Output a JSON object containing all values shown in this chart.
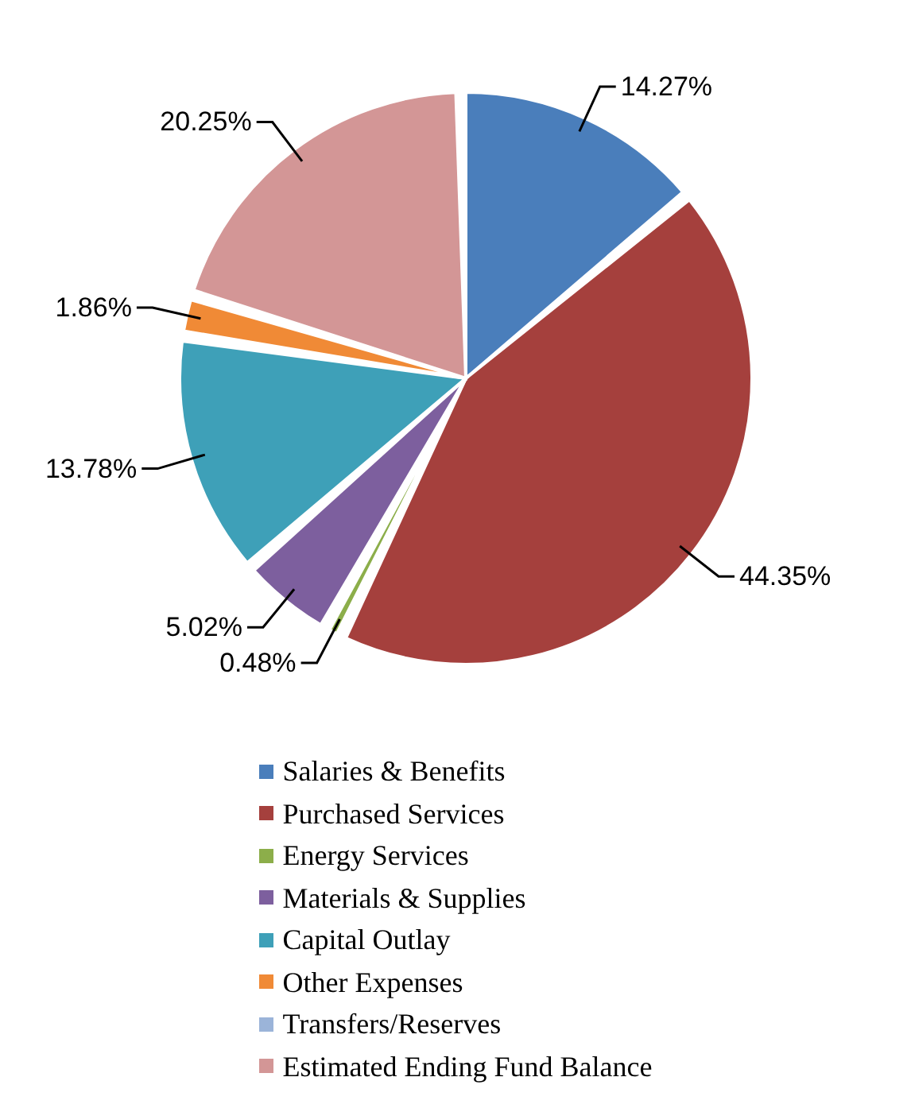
{
  "chart_data": {
    "type": "pie",
    "categories": [
      "Salaries & Benefits",
      "Purchased Services",
      "Energy Services",
      "Materials & Supplies",
      "Capital Outlay",
      "Other Expenses",
      "Transfers/Reserves",
      "Estimated Ending Fund Balance"
    ],
    "values": [
      14.27,
      44.35,
      0.48,
      5.02,
      13.78,
      1.86,
      0,
      20.25
    ],
    "value_labels": [
      "14.27%",
      "44.35%",
      "0.48%",
      "5.02%",
      "13.78%",
      "1.86%",
      null,
      "20.25%"
    ],
    "colors": [
      "#4a7ebb",
      "#a5403d",
      "#8cae4a",
      "#7d5f9e",
      "#3ea0b8",
      "#f08a36",
      "#9bb4d9",
      "#d39696"
    ],
    "legend": "bottom"
  }
}
